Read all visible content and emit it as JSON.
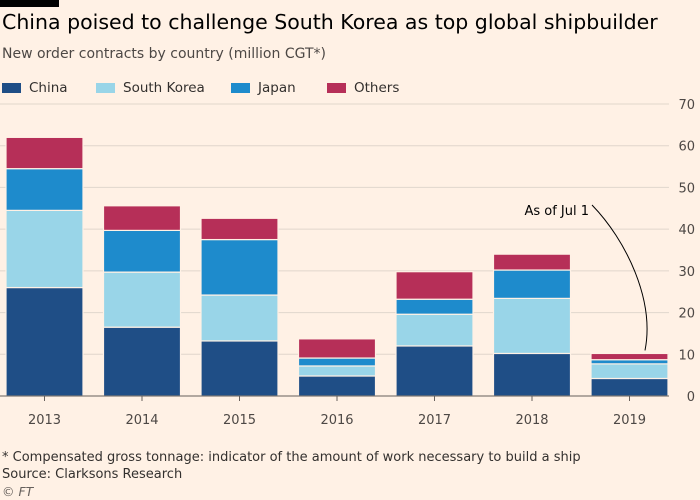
{
  "title": "China poised to challenge South Korea as top global shipbuilder",
  "subtitle": "New order contracts by country (million CGT*)",
  "footnote": "* Compensated gross tonnage: indicator of the amount of work necessary to build a ship",
  "source": "Source: Clarksons Research",
  "credit": "© FT",
  "colors": {
    "background": "#fff1e5",
    "china": "#1f4e86",
    "south_korea": "#99d5e8",
    "japan": "#1e8bcc",
    "others": "#b62f58",
    "grid": "#e0d6cc",
    "axis": "#66605c"
  },
  "chart_data": {
    "type": "bar",
    "stacked": true,
    "categories": [
      "2013",
      "2014",
      "2015",
      "2016",
      "2017",
      "2018",
      "2019"
    ],
    "series": [
      {
        "name": "China",
        "color": "#1f4e86",
        "values": [
          26,
          16.5,
          13.2,
          4.8,
          12,
          10.2,
          4.2
        ]
      },
      {
        "name": "South Korea",
        "color": "#99d5e8",
        "values": [
          18.5,
          13.2,
          11,
          2.4,
          7.6,
          13.2,
          3.5
        ]
      },
      {
        "name": "Japan",
        "color": "#1e8bcc",
        "values": [
          10,
          10,
          13.3,
          1.9,
          3.6,
          6.8,
          1
        ]
      },
      {
        "name": "Others",
        "color": "#b62f58",
        "values": [
          7.5,
          5.9,
          5.1,
          4.6,
          6.6,
          3.8,
          1.5
        ]
      }
    ],
    "ylim": [
      0,
      70
    ],
    "yticks": [
      0,
      10,
      20,
      30,
      40,
      50,
      60,
      70
    ],
    "y_axis_side": "right",
    "grid": true,
    "legend": "top-left",
    "annotations": [
      {
        "text": "As of Jul 1",
        "category": "2019"
      }
    ]
  }
}
